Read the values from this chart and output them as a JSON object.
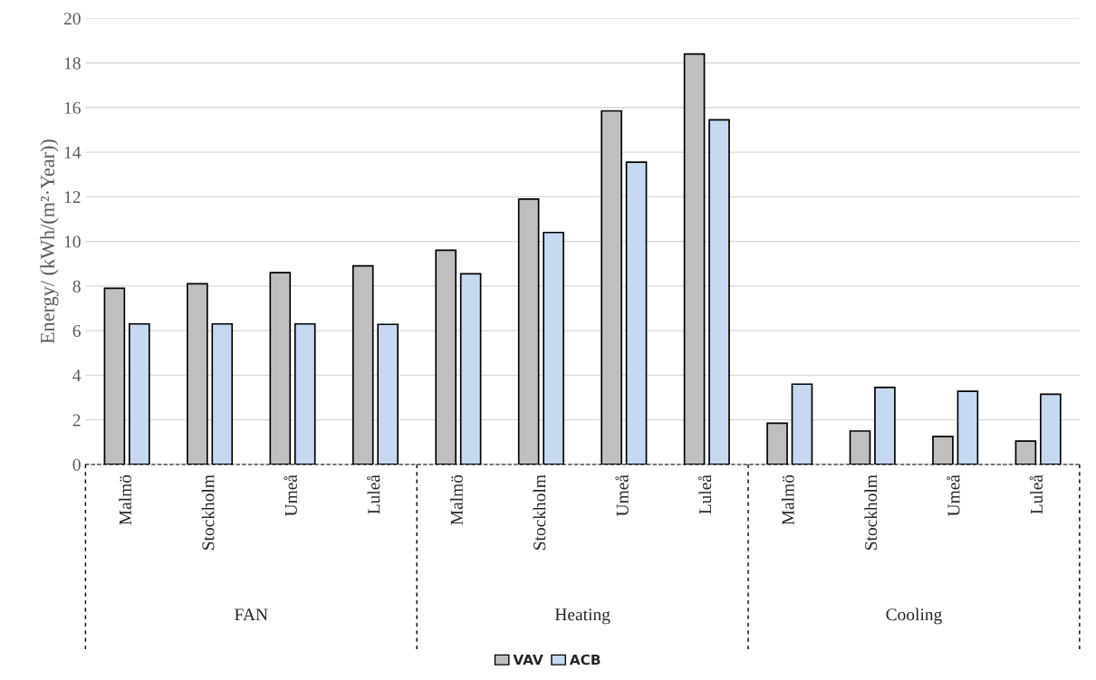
{
  "chart_data": {
    "type": "bar",
    "ylabel": "Energy/ (kWh/(m²·Year))",
    "categories": [
      "Malmö",
      "Stockholm",
      "Umeå",
      "Luleå",
      "Malmö",
      "Stockholm",
      "Umeå",
      "Luleå",
      "Malmö",
      "Stockholm",
      "Umeå",
      "Luleå"
    ],
    "annotations": [
      "FAN",
      "Heating",
      "Cooling"
    ],
    "series": [
      {
        "name": "VAV",
        "color": "#bfbfbf",
        "values": [
          7.9,
          8.1,
          8.6,
          8.9,
          9.6,
          11.9,
          15.85,
          18.4,
          1.85,
          1.5,
          1.25,
          1.05
        ]
      },
      {
        "name": "ACB",
        "color": "#c6d9f1",
        "values": [
          6.3,
          6.3,
          6.3,
          6.28,
          8.55,
          10.4,
          13.55,
          15.45,
          3.6,
          3.45,
          3.28,
          3.15
        ]
      }
    ],
    "ylim": [
      0,
      20
    ],
    "yticks": [
      0,
      2,
      4,
      6,
      8,
      10,
      12,
      14,
      16,
      18,
      20
    ],
    "grid": "y",
    "legend": "bottom"
  }
}
